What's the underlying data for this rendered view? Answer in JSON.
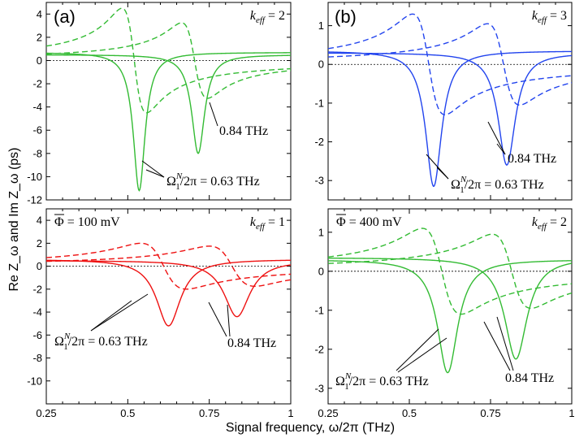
{
  "xlabel": "Signal frequency, ω/2π (THz)",
  "ylabel": "Re Z_ω and Im Z_ω (ps)",
  "colors": {
    "green": "#33bb33",
    "blue": "#2244ee",
    "red": "#ee1111"
  },
  "chart_data": [
    {
      "type": "line",
      "panel": "(a)",
      "keff": "2",
      "phi": "",
      "color": "green",
      "xlim": [
        0.25,
        1
      ],
      "ylim": [
        -12,
        5
      ],
      "yticks": [
        4,
        2,
        0,
        -2,
        -4,
        -6,
        -8,
        -10,
        -12
      ],
      "xticks": [],
      "xtick_labels": [],
      "series": [
        {
          "name": "Re Z, 0.63 THz resonance",
          "style": "solid",
          "f0": 0.535,
          "g": 0.022,
          "depth": 11.9,
          "bg": 0.7
        },
        {
          "name": "Im Z, 0.63 THz resonance",
          "style": "dashed",
          "f0": 0.52,
          "g": 0.038,
          "depth": 9.0,
          "bg": 0.0
        },
        {
          "name": "Re Z, 0.84 THz resonance",
          "style": "solid",
          "f0": 0.716,
          "g": 0.024,
          "depth": 8.5,
          "bg": 0.5
        },
        {
          "name": "Im Z, 0.84 THz resonance",
          "style": "dashed",
          "f0": 0.705,
          "g": 0.04,
          "depth": 6.5,
          "bg": 0.0
        }
      ],
      "annotations": [
        {
          "id": "ann-063",
          "text": "Ω",
          "sup": "N",
          "sub": "1",
          "rest": "/2π = 0.63 THz"
        },
        {
          "id": "ann-084",
          "text": "0.84 THz"
        }
      ]
    },
    {
      "type": "line",
      "panel": "(b)",
      "keff": "3",
      "phi": "",
      "color": "blue",
      "xlim": [
        0.25,
        1
      ],
      "ylim": [
        -3.5,
        1.6
      ],
      "yticks": [
        1,
        0,
        -1,
        -2,
        -3
      ],
      "xticks": [],
      "xtick_labels": [],
      "series": [
        {
          "name": "Re Z, 0.63 THz resonance",
          "style": "solid",
          "f0": 0.575,
          "g": 0.03,
          "depth": 3.5,
          "bg": 0.35
        },
        {
          "name": "Im Z, 0.63 THz resonance",
          "style": "dashed",
          "f0": 0.56,
          "g": 0.05,
          "depth": 2.6,
          "bg": 0.0
        },
        {
          "name": "Re Z, 0.84 THz resonance",
          "style": "solid",
          "f0": 0.8,
          "g": 0.032,
          "depth": 2.9,
          "bg": 0.3
        },
        {
          "name": "Im Z, 0.84 THz resonance",
          "style": "dashed",
          "f0": 0.79,
          "g": 0.05,
          "depth": 2.1,
          "bg": 0.0
        }
      ],
      "annotations": [
        {
          "id": "ann-063",
          "text": "Ω",
          "sup": "N",
          "sub": "1",
          "rest": "/2π = 0.63 THz"
        },
        {
          "id": "ann-084",
          "text": "0.84 THz"
        }
      ]
    },
    {
      "type": "line",
      "panel": "",
      "keff": "1",
      "phi": "Φ = 100 mV",
      "color": "red",
      "xlim": [
        0.25,
        1
      ],
      "ylim": [
        -12,
        5
      ],
      "yticks": [
        4,
        2,
        0,
        -2,
        -4,
        -6,
        -8,
        -10
      ],
      "xticks": [
        0.25,
        0.5,
        0.75,
        1
      ],
      "xtick_labels": [
        "0.25",
        "0.5",
        "0.75",
        "1"
      ],
      "series": [
        {
          "name": "Re Z, 0.63 THz resonance",
          "style": "solid",
          "f0": 0.625,
          "g": 0.045,
          "depth": 5.8,
          "bg": 0.6
        },
        {
          "name": "Im Z, 0.63 THz resonance",
          "style": "dashed",
          "f0": 0.61,
          "g": 0.07,
          "depth": 4.0,
          "bg": 0.0
        },
        {
          "name": "Re Z, 0.84 THz resonance",
          "style": "solid",
          "f0": 0.835,
          "g": 0.048,
          "depth": 4.9,
          "bg": 0.5
        },
        {
          "name": "Im Z, 0.84 THz resonance",
          "style": "dashed",
          "f0": 0.82,
          "g": 0.07,
          "depth": 3.5,
          "bg": 0.0
        }
      ],
      "annotations": [
        {
          "id": "ann-063",
          "text": "Ω",
          "sup": "N",
          "sub": "1",
          "rest": "/2π = 0.63 THz"
        },
        {
          "id": "ann-084",
          "text": "0.84 THz"
        }
      ]
    },
    {
      "type": "line",
      "panel": "",
      "keff": "2",
      "phi": "Φ = 400 mV",
      "color": "green",
      "xlim": [
        0.25,
        1
      ],
      "ylim": [
        -3.4,
        1.6
      ],
      "yticks": [
        1,
        0,
        -1,
        -2,
        -3
      ],
      "xticks": [
        0.25,
        0.5,
        0.75,
        1
      ],
      "xtick_labels": [
        "0.25",
        "0.5",
        "0.75",
        "1"
      ],
      "series": [
        {
          "name": "Re Z, 0.63 THz resonance",
          "style": "solid",
          "f0": 0.618,
          "g": 0.038,
          "depth": 2.9,
          "bg": 0.3
        },
        {
          "name": "Im Z, 0.63 THz resonance",
          "style": "dashed",
          "f0": 0.6,
          "g": 0.06,
          "depth": 2.2,
          "bg": 0.0
        },
        {
          "name": "Re Z, 0.84 THz resonance",
          "style": "solid",
          "f0": 0.828,
          "g": 0.042,
          "depth": 2.6,
          "bg": 0.35
        },
        {
          "name": "Im Z, 0.84 THz resonance",
          "style": "dashed",
          "f0": 0.815,
          "g": 0.06,
          "depth": 1.9,
          "bg": 0.0
        }
      ],
      "annotations": [
        {
          "id": "ann-063",
          "text": "Ω",
          "sup": "N",
          "sub": "1",
          "rest": "/2π = 0.63 THz"
        },
        {
          "id": "ann-084",
          "text": "0.84 THz"
        }
      ]
    }
  ]
}
